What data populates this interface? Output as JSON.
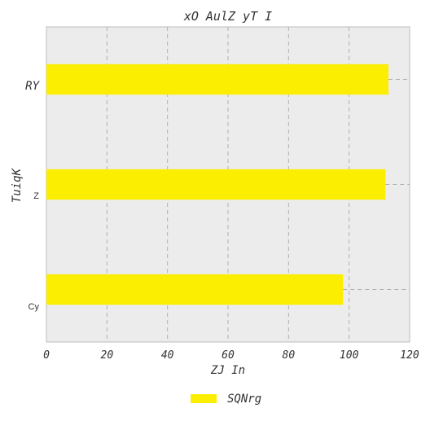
{
  "chart_data": {
    "type": "bar",
    "orientation": "horizontal",
    "title": "xO AulZ yT I",
    "xlabel": "ZJ In",
    "ylabel": "TuiqK",
    "categories": [
      "RY",
      "Z",
      "Cy"
    ],
    "series": [
      {
        "name": "SQNrg",
        "values": [
          113,
          112,
          98
        ],
        "color": "#fbee00"
      }
    ],
    "xlim": [
      0,
      120
    ],
    "xticks": [
      "0",
      "20",
      "40",
      "60",
      "80",
      "100",
      "120"
    ],
    "grid": true,
    "legend_position": "bottom-center",
    "plot_background": "#ececec"
  }
}
